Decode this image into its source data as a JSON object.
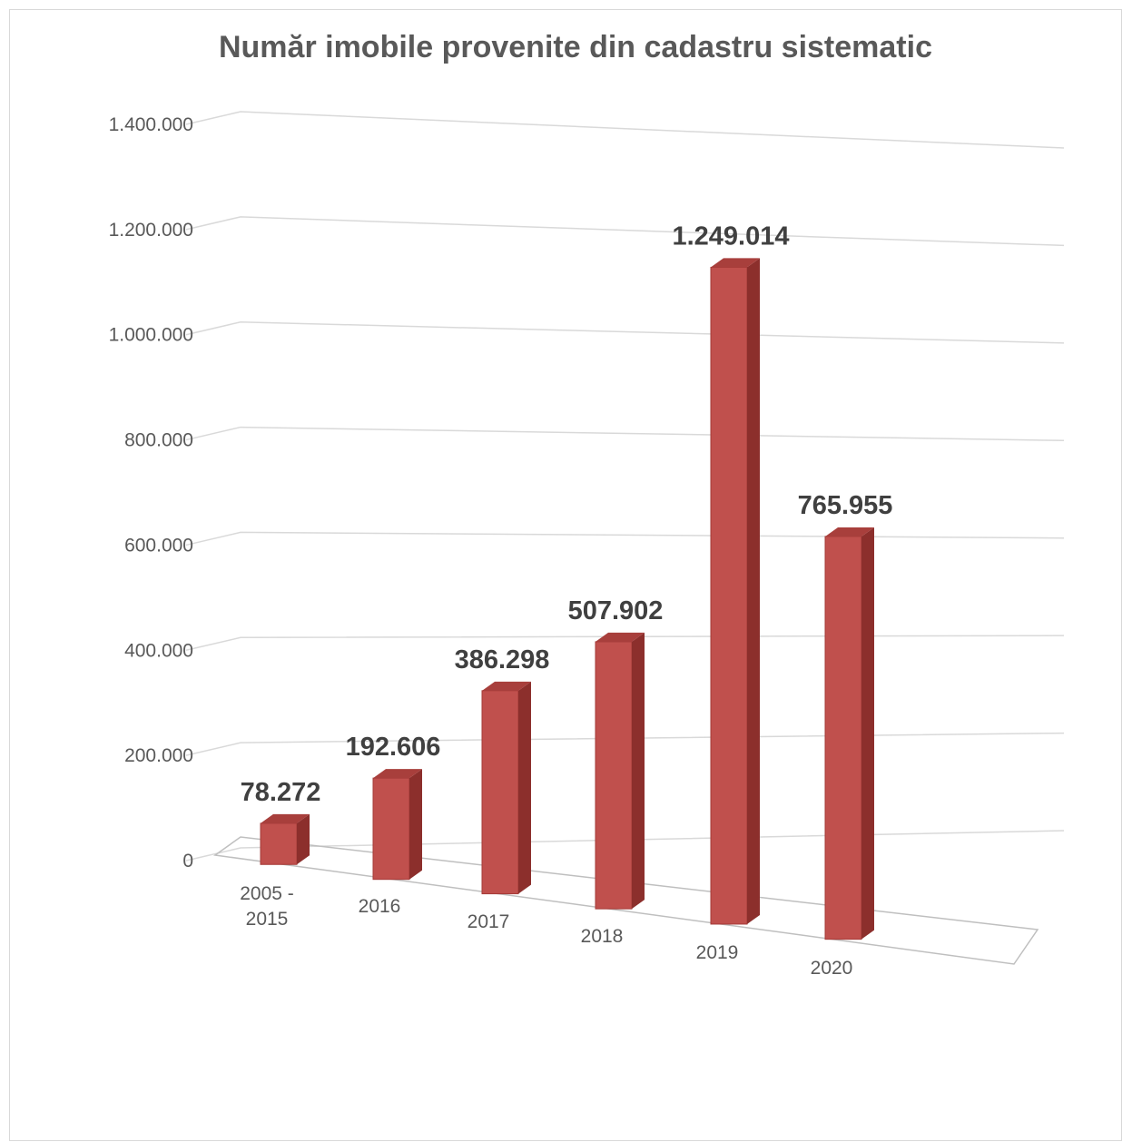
{
  "chart_data": {
    "type": "bar",
    "title": "Număr imobile provenite din cadastru sistematic",
    "categories": [
      [
        "2005 -",
        "2015"
      ],
      [
        "2016"
      ],
      [
        "2017"
      ],
      [
        "2018"
      ],
      [
        "2019"
      ],
      [
        "2020"
      ]
    ],
    "values": [
      78272,
      192606,
      386298,
      507902,
      1249014,
      765955
    ],
    "data_labels": [
      "78.272",
      "192.606",
      "386.298",
      "507.902",
      "1.249.014",
      "765.955"
    ],
    "y_ticks": [
      0,
      200000,
      400000,
      600000,
      800000,
      1000000,
      1200000,
      1400000
    ],
    "y_tick_labels": [
      "0",
      "200.000",
      "400.000",
      "600.000",
      "800.000",
      "1.000.000",
      "1.200.000",
      "1.400.000"
    ],
    "ylim": [
      0,
      1400000
    ],
    "xlabel": "",
    "ylabel": "",
    "grid": true,
    "legend": "none",
    "style": "3d-column",
    "colors": {
      "bar_front": "#c0504d",
      "bar_side": "#8c2f2c",
      "bar_top": "#a83f3c",
      "gridline": "#d9d9d9",
      "axis_text": "#595959",
      "title": "#595959",
      "data_label": "#404040"
    }
  }
}
